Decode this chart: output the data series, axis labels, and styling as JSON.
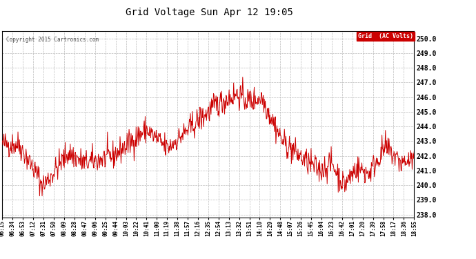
{
  "title": "Grid Voltage Sun Apr 12 19:05",
  "copyright": "Copyright 2015 Cartronics.com",
  "legend_label": "Grid  (AC Volts)",
  "legend_bg": "#cc0000",
  "legend_fg": "#ffffff",
  "line_color": "#cc0000",
  "bg_color": "#ffffff",
  "plot_bg": "#ffffff",
  "grid_color": "#bbbbbb",
  "ylim": [
    237.8,
    250.5
  ],
  "yticks": [
    238.0,
    239.0,
    240.0,
    241.0,
    242.0,
    243.0,
    244.0,
    245.0,
    246.0,
    247.0,
    248.0,
    249.0,
    250.0
  ],
  "xtick_labels": [
    "06:15",
    "06:34",
    "06:53",
    "07:12",
    "07:31",
    "07:50",
    "08:09",
    "08:28",
    "08:47",
    "09:06",
    "09:25",
    "09:44",
    "10:03",
    "10:22",
    "10:41",
    "11:00",
    "11:19",
    "11:38",
    "11:57",
    "12:16",
    "12:35",
    "12:54",
    "13:13",
    "13:32",
    "13:51",
    "14:10",
    "14:29",
    "14:48",
    "15:07",
    "15:26",
    "15:45",
    "16:04",
    "16:23",
    "16:42",
    "17:01",
    "17:20",
    "17:39",
    "17:58",
    "18:17",
    "18:36",
    "18:55"
  ],
  "seed": 42
}
